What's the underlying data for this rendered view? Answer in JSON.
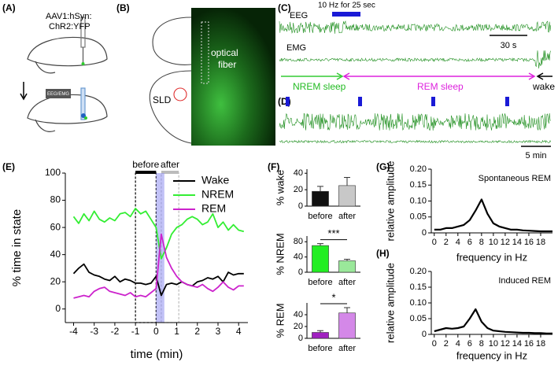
{
  "figure": {
    "panel_labels": [
      "(A)",
      "(B)",
      "(C)",
      "(D)",
      "(E)",
      "(F)",
      "(G)",
      "(H)"
    ],
    "a": {
      "virus": [
        "AAV1:hSyn:",
        "ChR2:YFP"
      ],
      "implant": "EEG/EMG"
    },
    "b": {
      "fiber": [
        "optical",
        "fiber"
      ],
      "region": "SLD"
    },
    "c": {
      "eeg": "EEG",
      "stim": "10 Hz for 25 sec",
      "scale": "30 s",
      "emg": "EMG",
      "nrem": "NREM sleep",
      "rem": "REM sleep",
      "wake": "wake"
    },
    "d": {
      "scale": "5 min"
    }
  },
  "chart_data": [
    {
      "type": "line",
      "xlabel": "time (min)",
      "ylabel": "% time in state",
      "x": [
        -4,
        -3.75,
        -3.5,
        -3.25,
        -3,
        -2.75,
        -2.5,
        -2.25,
        -2,
        -1.75,
        -1.5,
        -1.25,
        -1,
        -0.75,
        -0.5,
        -0.25,
        0,
        0.25,
        0.5,
        0.75,
        1,
        1.25,
        1.5,
        1.75,
        2,
        2.25,
        2.5,
        2.75,
        3,
        3.25,
        3.5,
        3.75,
        4,
        4.25
      ],
      "series": [
        {
          "name": "Wake",
          "color": "#000000",
          "values": [
            26,
            30,
            33,
            27,
            25,
            24,
            22,
            21,
            24,
            20,
            22,
            21,
            19,
            19,
            18,
            19,
            24,
            10,
            18,
            19,
            18,
            20,
            18,
            17,
            20,
            21,
            23,
            22,
            24,
            20,
            27,
            25,
            26,
            26
          ]
        },
        {
          "name": "NREM",
          "color": "#33ee33",
          "values": [
            68,
            63,
            70,
            65,
            72,
            66,
            64,
            67,
            65,
            70,
            71,
            68,
            74,
            70,
            72,
            66,
            60,
            37,
            45,
            55,
            60,
            62,
            66,
            68,
            66,
            62,
            64,
            70,
            60,
            64,
            58,
            62,
            58,
            57
          ]
        },
        {
          "name": "REM",
          "color": "#cc22cc",
          "values": [
            8,
            9,
            10,
            9,
            13,
            15,
            16,
            13,
            12,
            11,
            10,
            12,
            9,
            10,
            9,
            12,
            15,
            55,
            38,
            30,
            24,
            20,
            18,
            17,
            16,
            18,
            15,
            13,
            16,
            20,
            16,
            14,
            17,
            17
          ]
        }
      ],
      "regions": [
        {
          "label": "before",
          "range": [
            -1,
            0
          ],
          "color": "#000000"
        },
        {
          "label": "after",
          "range": [
            0.25,
            1.1
          ],
          "color": "#bbbbbb"
        },
        {
          "range": [
            0,
            0.4
          ],
          "color": "#8f8ff0"
        }
      ],
      "xlim": [
        -4.4,
        4.45
      ],
      "xticks": [
        -4,
        -3,
        -2,
        -1,
        0,
        1,
        2,
        3,
        4
      ],
      "ylim": [
        -10,
        100
      ],
      "yticks": [
        0,
        20,
        40,
        60,
        80,
        100
      ],
      "legend": "upper right"
    },
    {
      "type": "bar",
      "ylabel": "% wake",
      "categories": [
        "before",
        "after"
      ],
      "values": [
        18,
        25
      ],
      "errors": [
        6,
        10
      ],
      "colors": [
        "#111111",
        "#c8c8c8"
      ],
      "ylim": [
        0,
        45
      ],
      "yticks": [
        0,
        20,
        40
      ]
    },
    {
      "type": "bar",
      "ylabel": "% NREM",
      "categories": [
        "before",
        "after"
      ],
      "values": [
        70,
        30
      ],
      "errors": [
        5,
        4
      ],
      "colors": [
        "#22ee22",
        "#9ae89a"
      ],
      "ylim": [
        0,
        95
      ],
      "yticks": [
        0,
        40,
        80
      ],
      "annotation": "***"
    },
    {
      "type": "bar",
      "ylabel": "% REM",
      "categories": [
        "before",
        "after"
      ],
      "values": [
        10,
        43
      ],
      "errors": [
        3,
        9
      ],
      "colors": [
        "#a020c0",
        "#d488e8"
      ],
      "ylim": [
        0,
        60
      ],
      "yticks": [
        0,
        20,
        40
      ],
      "annotation": "*"
    },
    {
      "type": "line",
      "xlabel": "frequency in Hz",
      "ylabel": "relative amplitude",
      "annotation": "Spontaneous REM",
      "x": [
        0,
        1,
        2,
        3,
        4,
        5,
        6,
        7,
        8,
        9,
        10,
        11,
        12,
        13,
        14,
        15,
        16,
        17,
        18,
        19,
        20
      ],
      "values": [
        0.01,
        0.01,
        0.015,
        0.015,
        0.02,
        0.025,
        0.04,
        0.07,
        0.105,
        0.06,
        0.03,
        0.02,
        0.015,
        0.01,
        0.01,
        0.008,
        0.007,
        0.006,
        0.005,
        0.005,
        0.005
      ],
      "color": "#000000",
      "xlim": [
        -0.5,
        20
      ],
      "xticks": [
        0,
        2,
        4,
        6,
        8,
        10,
        12,
        14,
        16,
        18
      ],
      "ylim": [
        0,
        0.2
      ],
      "yticks": [
        0,
        0.05,
        {
          "value": 0.1,
          "label": "0.10"
        },
        0.15,
        {
          "value": 0.2,
          "label": "0.20"
        }
      ]
    },
    {
      "type": "line",
      "xlabel": "frequency in Hz",
      "ylabel": "relative amplitude",
      "annotation": "Induced REM",
      "x": [
        0,
        1,
        2,
        3,
        4,
        5,
        6,
        7,
        8,
        9,
        10,
        11,
        12,
        13,
        14,
        15,
        16,
        17,
        18,
        19,
        20
      ],
      "values": [
        0.01,
        0.015,
        0.02,
        0.018,
        0.02,
        0.025,
        0.05,
        0.08,
        0.04,
        0.02,
        0.012,
        0.01,
        0.008,
        0.007,
        0.006,
        0.005,
        0.005,
        0.004,
        0.004,
        0.003,
        0.003
      ],
      "color": "#000000",
      "xlim": [
        -0.5,
        20
      ],
      "xticks": [
        0,
        2,
        4,
        6,
        8,
        10,
        12,
        14,
        16,
        18
      ],
      "ylim": [
        0,
        0.2
      ],
      "yticks": [
        0,
        0.05,
        {
          "value": 0.1,
          "label": "0.10"
        },
        0.15,
        {
          "value": 0.2,
          "label": "0.20"
        }
      ]
    }
  ]
}
